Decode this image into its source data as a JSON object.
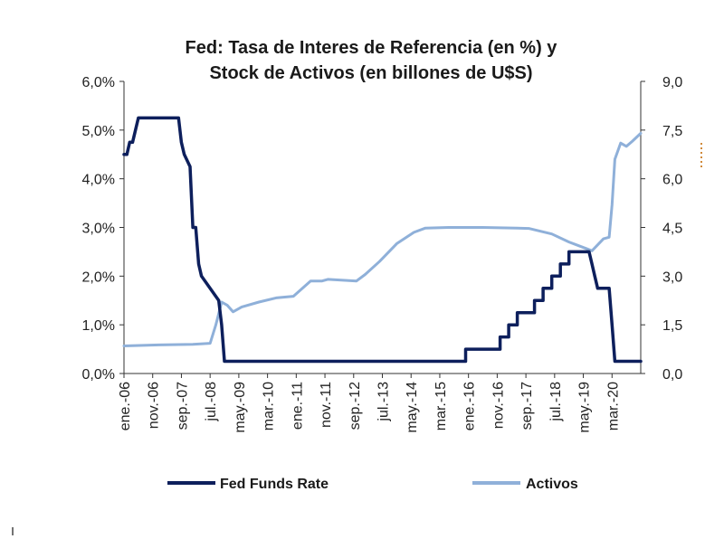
{
  "chart_data": {
    "type": "line",
    "title_lines": [
      "Fed: Tasa de Interes de Referencia (en %) y",
      "Stock de Activos (en billones de U$S)"
    ],
    "x_tick_labels": [
      "ene.-06",
      "nov.-06",
      "sep.-07",
      "jul.-08",
      "may.-09",
      "mar.-10",
      "ene.-11",
      "nov.-11",
      "sep.-12",
      "jul.-13",
      "may.-14",
      "mar.-15",
      "ene.-16",
      "nov.-16",
      "sep.-17",
      "jul.-18",
      "may.-19",
      "mar.-20"
    ],
    "x_range": [
      "2006-01",
      "2021-01"
    ],
    "y_left_ticks": [
      "0,0%",
      "1,0%",
      "2,0%",
      "3,0%",
      "4,0%",
      "5,0%",
      "6,0%"
    ],
    "y_left_range": [
      0,
      6
    ],
    "y_right_ticks": [
      "0,0",
      "1,5",
      "3,0",
      "4,5",
      "6,0",
      "7,5",
      "9,0"
    ],
    "y_right_range": [
      0,
      9
    ],
    "grid": false,
    "legend_position": "bottom",
    "series": [
      {
        "name": "Fed Funds Rate",
        "axis": "left",
        "color": "#0d1f5c",
        "points": [
          [
            "2006-01",
            4.5
          ],
          [
            "2006-02",
            4.5
          ],
          [
            "2006-03",
            4.75
          ],
          [
            "2006-04",
            4.75
          ],
          [
            "2006-05",
            5.0
          ],
          [
            "2006-06",
            5.25
          ],
          [
            "2007-08",
            5.25
          ],
          [
            "2007-09",
            4.75
          ],
          [
            "2007-10",
            4.5
          ],
          [
            "2007-12",
            4.25
          ],
          [
            "2008-01",
            3.0
          ],
          [
            "2008-02",
            3.0
          ],
          [
            "2008-03",
            2.25
          ],
          [
            "2008-04",
            2.0
          ],
          [
            "2008-10",
            1.5
          ],
          [
            "2008-11",
            1.0
          ],
          [
            "2008-12",
            0.25
          ],
          [
            "2015-12",
            0.25
          ],
          [
            "2015-12",
            0.5
          ],
          [
            "2016-12",
            0.5
          ],
          [
            "2016-12",
            0.75
          ],
          [
            "2017-03",
            0.75
          ],
          [
            "2017-03",
            1.0
          ],
          [
            "2017-06",
            1.0
          ],
          [
            "2017-06",
            1.25
          ],
          [
            "2017-12",
            1.25
          ],
          [
            "2017-12",
            1.5
          ],
          [
            "2018-03",
            1.5
          ],
          [
            "2018-03",
            1.75
          ],
          [
            "2018-06",
            1.75
          ],
          [
            "2018-06",
            2.0
          ],
          [
            "2018-09",
            2.0
          ],
          [
            "2018-09",
            2.25
          ],
          [
            "2018-12",
            2.25
          ],
          [
            "2018-12",
            2.5
          ],
          [
            "2019-07",
            2.5
          ],
          [
            "2019-08",
            2.25
          ],
          [
            "2019-09",
            2.0
          ],
          [
            "2019-10",
            1.75
          ],
          [
            "2020-02",
            1.75
          ],
          [
            "2020-03",
            1.0
          ],
          [
            "2020-04",
            0.25
          ],
          [
            "2021-01",
            0.25
          ]
        ]
      },
      {
        "name": "Activos",
        "axis": "right",
        "color": "#8fb0d9",
        "points": [
          [
            "2006-01",
            0.85
          ],
          [
            "2007-01",
            0.88
          ],
          [
            "2008-01",
            0.9
          ],
          [
            "2008-07",
            0.93
          ],
          [
            "2008-09",
            1.5
          ],
          [
            "2008-11",
            2.2
          ],
          [
            "2009-01",
            2.1
          ],
          [
            "2009-03",
            1.9
          ],
          [
            "2009-06",
            2.05
          ],
          [
            "2009-12",
            2.2
          ],
          [
            "2010-06",
            2.33
          ],
          [
            "2010-12",
            2.38
          ],
          [
            "2011-06",
            2.85
          ],
          [
            "2011-10",
            2.85
          ],
          [
            "2011-12",
            2.9
          ],
          [
            "2012-06",
            2.87
          ],
          [
            "2012-10",
            2.85
          ],
          [
            "2013-01",
            3.05
          ],
          [
            "2013-06",
            3.45
          ],
          [
            "2013-12",
            4.0
          ],
          [
            "2014-06",
            4.35
          ],
          [
            "2014-10",
            4.48
          ],
          [
            "2015-06",
            4.5
          ],
          [
            "2016-06",
            4.5
          ],
          [
            "2017-06",
            4.48
          ],
          [
            "2017-10",
            4.47
          ],
          [
            "2018-06",
            4.3
          ],
          [
            "2018-12",
            4.05
          ],
          [
            "2019-06",
            3.85
          ],
          [
            "2019-08",
            3.78
          ],
          [
            "2019-12",
            4.15
          ],
          [
            "2020-02",
            4.2
          ],
          [
            "2020-03",
            5.2
          ],
          [
            "2020-04",
            6.6
          ],
          [
            "2020-06",
            7.1
          ],
          [
            "2020-08",
            7.0
          ],
          [
            "2020-10",
            7.15
          ],
          [
            "2021-01",
            7.4
          ]
        ]
      }
    ]
  }
}
